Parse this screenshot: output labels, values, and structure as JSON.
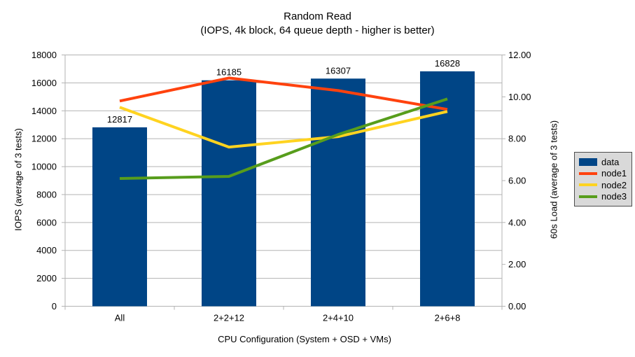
{
  "window": {
    "background": "#ffffff"
  },
  "chart_data": {
    "type": "combo-bar-line",
    "title": "Random Read",
    "subtitle": "(IOPS, 4k block, 64 queue depth - higher is better)",
    "categories": [
      "All",
      "2+2+12",
      "2+4+10",
      "2+6+8"
    ],
    "bar_series": {
      "name": "data",
      "color": "#004586",
      "axis": "left",
      "values": [
        12817,
        16185,
        16307,
        16828
      ],
      "data_labels": [
        "12817",
        "16185",
        "16307",
        "16828"
      ]
    },
    "line_series": [
      {
        "name": "node1",
        "color": "#FF420E",
        "axis": "right",
        "values": [
          9.8,
          10.9,
          10.3,
          9.4
        ]
      },
      {
        "name": "node2",
        "color": "#FFD320",
        "axis": "right",
        "values": [
          9.5,
          7.6,
          8.1,
          9.3
        ]
      },
      {
        "name": "node3",
        "color": "#579D1C",
        "axis": "right",
        "values": [
          6.1,
          6.2,
          8.2,
          9.9
        ]
      }
    ],
    "left_axis": {
      "title": "IOPS (average of 3 tests)",
      "min": 0,
      "max": 18000,
      "step": 2000,
      "tick_labels": [
        "0",
        "2000",
        "4000",
        "6000",
        "8000",
        "10000",
        "12000",
        "14000",
        "16000",
        "18000"
      ]
    },
    "right_axis": {
      "title": "60s Load (average of 3 tests)",
      "min": 0,
      "max": 12,
      "step": 2,
      "tick_labels": [
        "0.00",
        "2.00",
        "4.00",
        "6.00",
        "8.00",
        "10.00",
        "12.00"
      ]
    },
    "x_axis": {
      "title": "CPU Configuration (System + OSD + VMs)"
    },
    "legend": {
      "position": "right",
      "entries": [
        {
          "label": "data",
          "swatch": "bar",
          "color": "#004586"
        },
        {
          "label": "node1",
          "swatch": "line",
          "color": "#FF420E"
        },
        {
          "label": "node2",
          "swatch": "line",
          "color": "#FFD320"
        },
        {
          "label": "node3",
          "swatch": "line",
          "color": "#579D1C"
        }
      ]
    },
    "style": {
      "grid_color": "#B3B3B3",
      "axis_color": "#B3B3B3",
      "text_color": "#000000",
      "legend_bg": "#D9D9D9",
      "legend_border": "#4D4D4D",
      "plot_bg": "#FFFFFF"
    }
  }
}
